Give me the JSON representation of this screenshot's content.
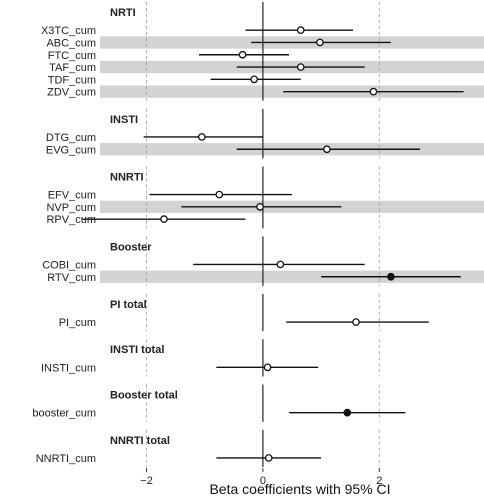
{
  "chart_data": {
    "type": "forest",
    "xlabel": "Beta coefficients with 95% CI",
    "xlim": [
      -2.8,
      3.8
    ],
    "ticks": [
      -2,
      0,
      2
    ],
    "tick_labels": [
      "−2",
      "0",
      "2"
    ],
    "groups": [
      {
        "name": "NRTI",
        "rows": [
          {
            "label": "X3TC_cum",
            "est": 0.65,
            "lo": -0.3,
            "hi": 1.55,
            "filled": false
          },
          {
            "label": "ABC_cum",
            "est": 0.98,
            "lo": -0.2,
            "hi": 2.2,
            "filled": false
          },
          {
            "label": "FTC_cum",
            "est": -0.35,
            "lo": -1.1,
            "hi": 0.45,
            "filled": false
          },
          {
            "label": "TAF_cum",
            "est": 0.65,
            "lo": -0.45,
            "hi": 1.75,
            "filled": false
          },
          {
            "label": "TDF_cum",
            "est": -0.15,
            "lo": -0.9,
            "hi": 0.65,
            "filled": false
          },
          {
            "label": "ZDV_cum",
            "est": 1.9,
            "lo": 0.35,
            "hi": 3.45,
            "filled": false
          }
        ]
      },
      {
        "name": "INSTI",
        "rows": [
          {
            "label": "DTG_cum",
            "est": -1.05,
            "lo": -2.05,
            "hi": 0.0,
            "filled": false
          },
          {
            "label": "EVG_cum",
            "est": 1.1,
            "lo": -0.45,
            "hi": 2.7,
            "filled": false
          }
        ]
      },
      {
        "name": "NNRTI",
        "rows": [
          {
            "label": "EFV_cum",
            "est": -0.75,
            "lo": -1.95,
            "hi": 0.5,
            "filled": false
          },
          {
            "label": "NVP_cum",
            "est": -0.05,
            "lo": -1.4,
            "hi": 1.35,
            "filled": false
          },
          {
            "label": "RPV_cum",
            "est": -1.7,
            "lo": -3.1,
            "hi": -0.3,
            "filled": false
          }
        ]
      },
      {
        "name": "Booster",
        "rows": [
          {
            "label": "COBI_cum",
            "est": 0.3,
            "lo": -1.2,
            "hi": 1.75,
            "filled": false
          },
          {
            "label": "RTV_cum",
            "est": 2.2,
            "lo": 1.0,
            "hi": 3.4,
            "filled": true
          }
        ]
      },
      {
        "name": "PI total",
        "rows": [
          {
            "label": "PI_cum",
            "est": 1.6,
            "lo": 0.4,
            "hi": 2.85,
            "filled": false
          }
        ]
      },
      {
        "name": "INSTI total",
        "rows": [
          {
            "label": "INSTI_cum",
            "est": 0.08,
            "lo": -0.8,
            "hi": 0.95,
            "filled": false
          }
        ]
      },
      {
        "name": "Booster total",
        "rows": [
          {
            "label": "booster_cum",
            "est": 1.45,
            "lo": 0.45,
            "hi": 2.45,
            "filled": true
          }
        ]
      },
      {
        "name": "NNRTI total",
        "rows": [
          {
            "label": "NNRTI_cum",
            "est": 0.1,
            "lo": -0.8,
            "hi": 1.0,
            "filled": false
          }
        ]
      }
    ]
  }
}
